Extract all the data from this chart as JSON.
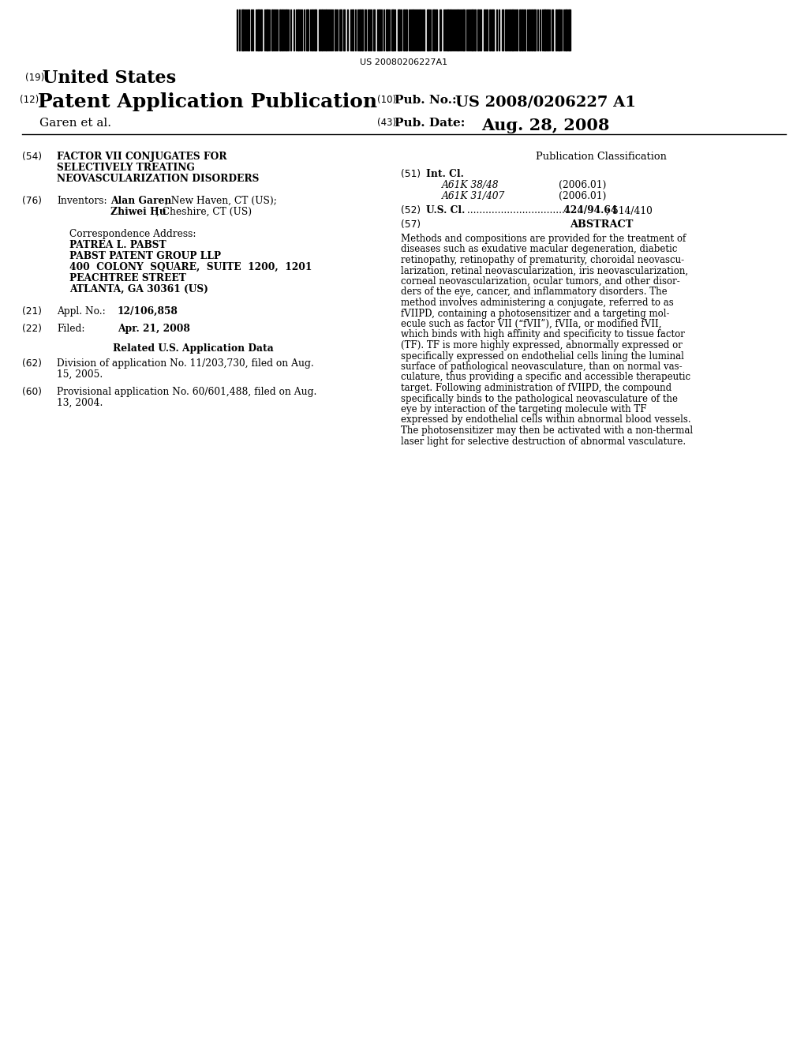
{
  "background_color": "#ffffff",
  "barcode_text": "US 20080206227A1",
  "header": {
    "number_19": "(19)",
    "united_states": "United States",
    "number_12": "(12)",
    "patent_app_pub": "Patent Application Publication",
    "number_10": "(10)",
    "pub_no_label": "Pub. No.:",
    "pub_no_value": "US 2008/0206227 A1",
    "garen": "Garen et al.",
    "number_43": "(43)",
    "pub_date_label": "Pub. Date:",
    "pub_date_value": "Aug. 28, 2008"
  },
  "left_col": {
    "num_54": "(54)",
    "title_line1": "FACTOR VII CONJUGATES FOR",
    "title_line2": "SELECTIVELY TREATING",
    "title_line3": "NEOVASCULARIZATION DISORDERS",
    "num_76": "(76)",
    "inventors_label": "Inventors:",
    "inventor1_bold": "Alan Garen",
    "inventor1_rest": ", New Haven, CT (US);",
    "inventor2_bold": "Zhiwei Hu",
    "inventor2_rest": ", Cheshire, CT (US)",
    "corr_label": "Correspondence Address:",
    "corr_line1": "PATREA L. PABST",
    "corr_line2": "PABST PATENT GROUP LLP",
    "corr_line3": "400  COLONY  SQUARE,  SUITE  1200,  1201",
    "corr_line4": "PEACHTREE STREET",
    "corr_line5": "ATLANTA, GA 30361 (US)",
    "num_21": "(21)",
    "appl_label": "Appl. No.:",
    "appl_value": "12/106,858",
    "num_22": "(22)",
    "filed_label": "Filed:",
    "filed_value": "Apr. 21, 2008",
    "related_header": "Related U.S. Application Data",
    "num_62": "(62)",
    "div_line1": "Division of application No. 11/203,730, filed on Aug.",
    "div_line2": "15, 2005.",
    "num_60": "(60)",
    "prov_line1": "Provisional application No. 60/601,488, filed on Aug.",
    "prov_line2": "13, 2004."
  },
  "right_col": {
    "pub_class_header": "Publication Classification",
    "num_51": "(51)",
    "int_cl_label": "Int. Cl.",
    "int_cl1_italic": "A61K 38/48",
    "int_cl1_year": "(2006.01)",
    "int_cl2_italic": "A61K 31/407",
    "int_cl2_year": "(2006.01)",
    "num_52": "(52)",
    "us_cl_label": "U.S. Cl.",
    "us_cl_dots": " ......................................",
    "us_cl_value": " 424/94.64",
    "us_cl_semi": "; 514/410",
    "num_57": "(57)",
    "abstract_header": "ABSTRACT",
    "abstract_lines": [
      "Methods and compositions are provided for the treatment of",
      "diseases such as exudative macular degeneration, diabetic",
      "retinopathy, retinopathy of prematurity, choroidal neovascu-",
      "larization, retinal neovascularization, iris neovascularization,",
      "corneal neovascularization, ocular tumors, and other disor-",
      "ders of the eye, cancer, and inflammatory disorders. The",
      "method involves administering a conjugate, referred to as",
      "fVIIPD, containing a photosensitizer and a targeting mol-",
      "ecule such as factor VII (“fVII”), fVIIa, or modified fVII,",
      "which binds with high affinity and specificity to tissue factor",
      "(TF). TF is more highly expressed, abnormally expressed or",
      "specifically expressed on endothelial cells lining the luminal",
      "surface of pathological neovasculature, than on normal vas-",
      "culature, thus providing a specific and accessible therapeutic",
      "target. Following administration of fVIIPD, the compound",
      "specifically binds to the pathological neovasculature of the",
      "eye by interaction of the targeting molecule with TF",
      "expressed by endothelial cells within abnormal blood vessels.",
      "The photosensitizer may then be activated with a non-thermal",
      "laser light for selective destruction of abnormal vasculature."
    ]
  }
}
